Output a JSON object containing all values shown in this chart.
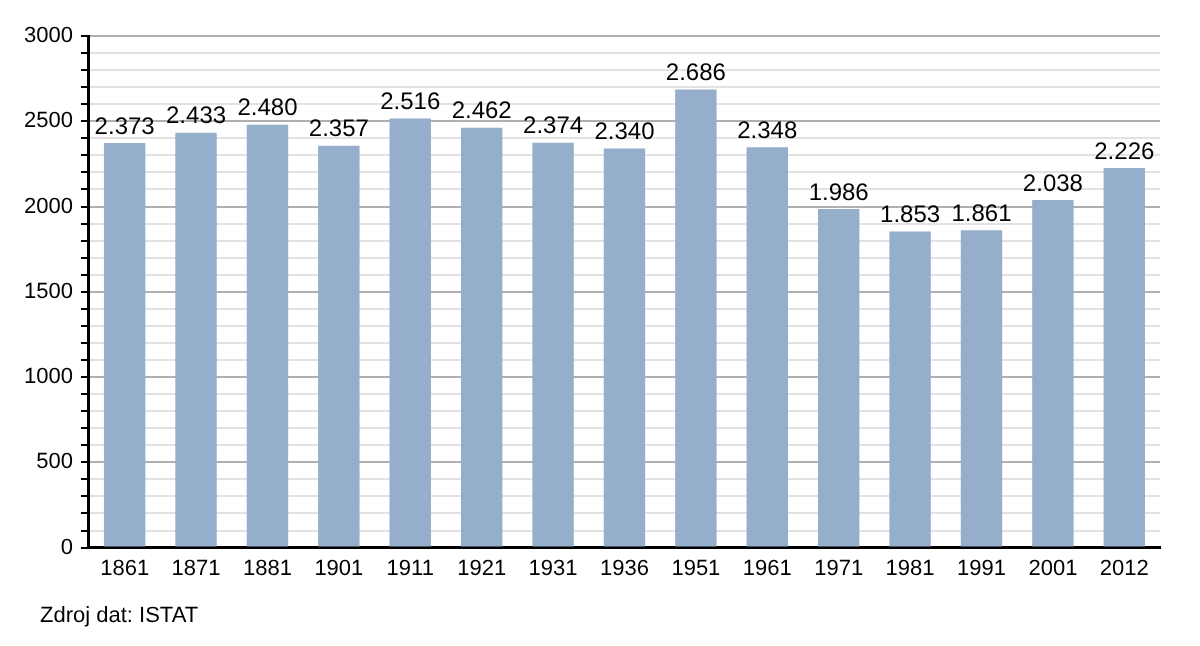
{
  "chart_data": {
    "type": "bar",
    "categories": [
      "1861",
      "1871",
      "1881",
      "1901",
      "1911",
      "1921",
      "1931",
      "1936",
      "1951",
      "1961",
      "1971",
      "1981",
      "1991",
      "2001",
      "2012"
    ],
    "values": [
      2373,
      2433,
      2480,
      2357,
      2516,
      2462,
      2374,
      2340,
      2686,
      2348,
      1986,
      1853,
      1861,
      2038,
      2226
    ],
    "value_labels": [
      "2.373",
      "2.433",
      "2.480",
      "2.357",
      "2.516",
      "2.462",
      "2.374",
      "2.340",
      "2.686",
      "2.348",
      "1.986",
      "1.853",
      "1.861",
      "2.038",
      "2.226"
    ],
    "color": "#94aecb",
    "ylim": [
      0,
      3000
    ],
    "yticks": [
      0,
      {
        "value": 100,
        "label": null
      },
      {
        "value": 200,
        "label": null
      },
      {
        "value": 300,
        "label": null
      },
      {
        "value": 400,
        "label": null
      },
      500,
      {
        "value": 600,
        "label": null
      },
      {
        "value": 700,
        "label": null
      },
      {
        "value": 800,
        "label": null
      },
      {
        "value": 900,
        "label": null
      },
      1000,
      {
        "value": 1100,
        "label": null
      },
      {
        "value": 1200,
        "label": null
      },
      {
        "value": 1300,
        "label": null
      },
      {
        "value": 1400,
        "label": null
      },
      1500,
      {
        "value": 1600,
        "label": null
      },
      {
        "value": 1700,
        "label": null
      },
      {
        "value": 1800,
        "label": null
      },
      {
        "value": 1900,
        "label": null
      },
      2000,
      {
        "value": 2100,
        "label": null
      },
      {
        "value": 2200,
        "label": null
      },
      {
        "value": 2300,
        "label": null
      },
      {
        "value": 2400,
        "label": null
      },
      2500,
      {
        "value": 2600,
        "label": null
      },
      {
        "value": 2700,
        "label": null
      },
      {
        "value": 2800,
        "label": null
      },
      {
        "value": 2900,
        "label": null
      },
      3000
    ],
    "grid": "y",
    "annotations": [
      "Zdroj dat: ISTAT"
    ]
  }
}
